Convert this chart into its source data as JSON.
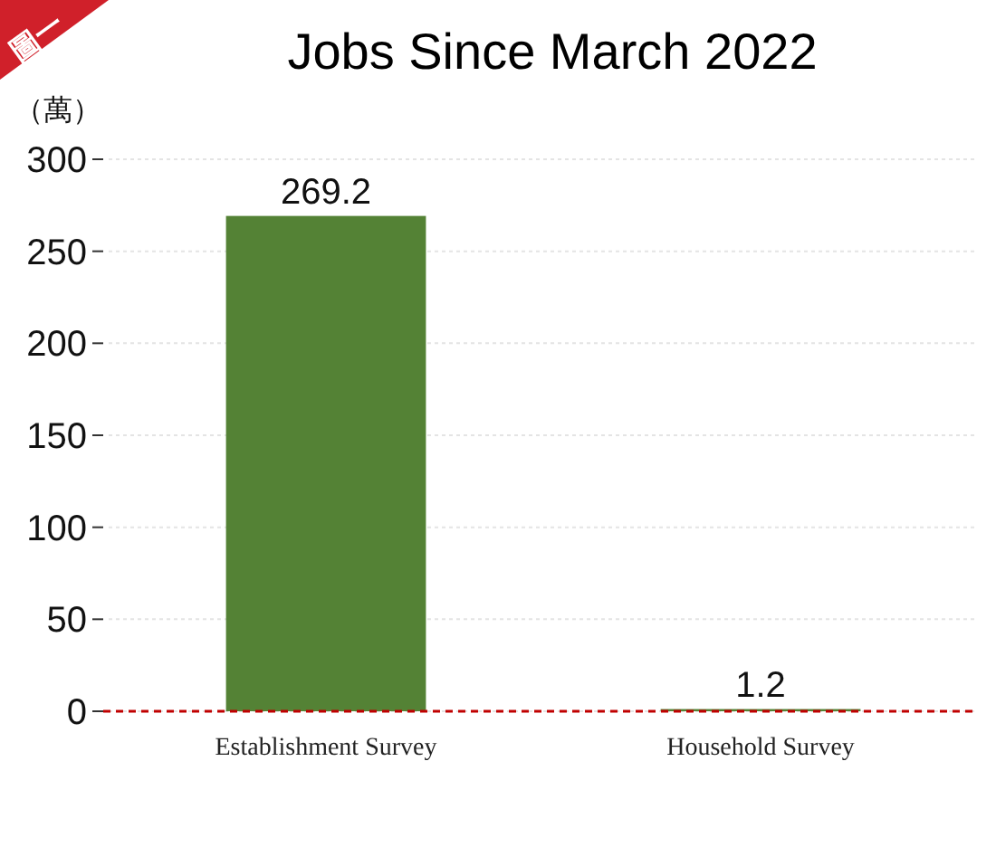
{
  "chart_data": {
    "type": "bar",
    "title": "Jobs Since March 2022",
    "ylabel": "（萬）",
    "annotations": [
      "圖一"
    ],
    "categories": [
      "Establishment Survey",
      "Household Survey"
    ],
    "values": [
      269.2,
      1.2
    ],
    "color": "#548235",
    "ylim": [
      0,
      300
    ],
    "yticks": [
      0,
      50,
      100,
      150,
      200,
      250,
      300
    ],
    "grid": "y",
    "data_labels": true,
    "ref_lines": [
      {
        "axis": "y",
        "value": 0,
        "color": "#c00000",
        "line_style": "dashed"
      }
    ]
  }
}
